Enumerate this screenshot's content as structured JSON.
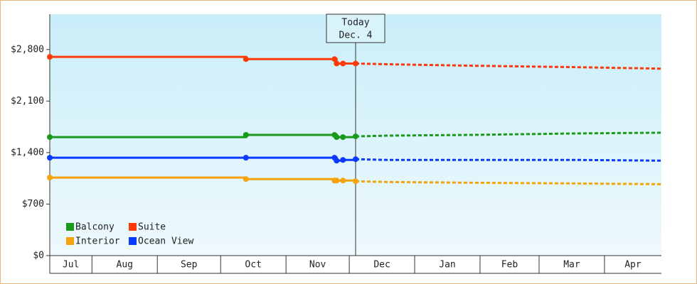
{
  "chart_data": {
    "type": "line",
    "step": true,
    "x": [
      0,
      93,
      135,
      136,
      139,
      145,
      160,
      200,
      250,
      290
    ],
    "xlim": [
      0,
      290
    ],
    "xticks": [
      {
        "value": 0,
        "label": "Jul"
      },
      {
        "value": 20,
        "label": "Aug"
      },
      {
        "value": 51,
        "label": "Sep"
      },
      {
        "value": 81,
        "label": "Oct"
      },
      {
        "value": 112,
        "label": "Nov"
      },
      {
        "value": 142,
        "label": "Dec"
      },
      {
        "value": 173,
        "label": "Jan"
      },
      {
        "value": 204,
        "label": "Feb"
      },
      {
        "value": 232,
        "label": "Mar"
      },
      {
        "value": 263,
        "label": "Apr"
      }
    ],
    "ylim": [
      0,
      3280
    ],
    "yticks": [
      {
        "value": 0,
        "label": "$0"
      },
      {
        "value": 700,
        "label": "$700"
      },
      {
        "value": 1400,
        "label": "$1,400"
      },
      {
        "value": 2100,
        "label": "$2,100"
      },
      {
        "value": 2800,
        "label": "$2,800"
      }
    ],
    "today": {
      "x": 145,
      "label": "Today",
      "date": "Dec. 4"
    },
    "series": [
      {
        "name": "Balcony",
        "color": "#1a9a1a",
        "values": [
          1610,
          1640,
          1640,
          1610,
          1610,
          1620,
          1630,
          1640,
          1660,
          1670
        ]
      },
      {
        "name": "Suite",
        "color": "#ff3a0a",
        "values": [
          2700,
          2670,
          2670,
          2610,
          2610,
          2610,
          2600,
          2580,
          2560,
          2540
        ]
      },
      {
        "name": "Interior",
        "color": "#f5a30a",
        "values": [
          1060,
          1040,
          1020,
          1020,
          1020,
          1010,
          1000,
          990,
          980,
          970
        ]
      },
      {
        "name": "Ocean View",
        "color": "#0a3aff",
        "values": [
          1330,
          1330,
          1330,
          1290,
          1300,
          1310,
          1300,
          1300,
          1300,
          1290
        ]
      }
    ]
  }
}
